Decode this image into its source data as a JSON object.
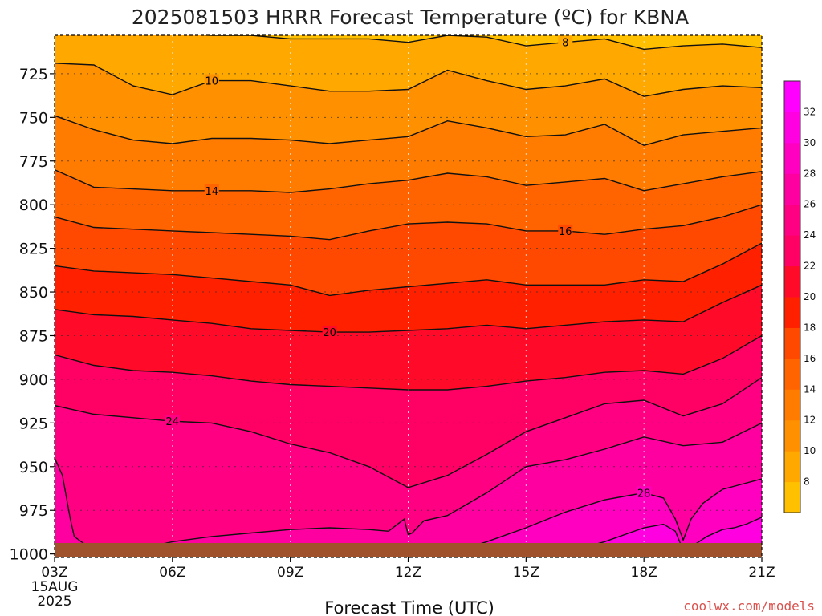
{
  "chart_data": {
    "type": "contour",
    "title": "2025081503 HRRR Forecast Temperature (ºC) for KBNA",
    "xlabel": "Forecast Time (UTC)",
    "ylabel": "",
    "credit": "coolwx.com/models",
    "x_ticks": [
      "03Z",
      "06Z",
      "09Z",
      "12Z",
      "15Z",
      "18Z",
      "21Z"
    ],
    "x_first_date": [
      "15AUG",
      "2025"
    ],
    "x_hours": [
      3,
      21
    ],
    "y_ticks": [
      725,
      750,
      775,
      800,
      825,
      850,
      875,
      900,
      925,
      950,
      975,
      1000
    ],
    "y_range": [
      703,
      1002
    ],
    "y_inverted": true,
    "grid": true,
    "colorbar": {
      "levels": [
        6,
        8,
        10,
        12,
        14,
        16,
        18,
        20,
        22,
        24,
        26,
        28,
        30,
        32,
        34
      ],
      "labels": [
        "8",
        "10",
        "12",
        "14",
        "16",
        "18",
        "20",
        "22",
        "24",
        "26",
        "28",
        "30",
        "32"
      ],
      "colors": [
        "#ffc000",
        "#ffa800",
        "#ff9000",
        "#ff7c00",
        "#ff6400",
        "#ff4800",
        "#ff2000",
        "#ff0a28",
        "#ff0064",
        "#ff0082",
        "#ff00a0",
        "#ff00c0",
        "#ff00e0",
        "#ff00ff"
      ]
    },
    "ground_color": "#a0522d",
    "isotherms": [
      {
        "temp": 8,
        "label": "8",
        "label_hour": 16.0,
        "hours": [
          3,
          4,
          5,
          6,
          7,
          8,
          9,
          10,
          11,
          12,
          13,
          14,
          15,
          16,
          17,
          18,
          19,
          20,
          21
        ],
        "pressures": [
          702,
          702,
          702,
          702,
          703,
          703,
          705,
          705,
          705,
          707,
          703,
          704,
          709,
          707,
          705,
          711,
          709,
          708,
          710
        ]
      },
      {
        "temp": 10,
        "label": "10",
        "label_hour": 7.0,
        "hours": [
          3,
          4,
          5,
          6,
          7,
          8,
          9,
          10,
          11,
          12,
          13,
          14,
          15,
          16,
          17,
          18,
          19,
          20,
          21
        ],
        "pressures": [
          719,
          720,
          732,
          737,
          729,
          729,
          732,
          735,
          735,
          734,
          723,
          729,
          734,
          732,
          728,
          738,
          734,
          732,
          733
        ]
      },
      {
        "temp": 12,
        "label": "",
        "label_hour": null,
        "hours": [
          3,
          4,
          5,
          6,
          7,
          8,
          9,
          10,
          11,
          12,
          13,
          14,
          15,
          16,
          17,
          18,
          19,
          20,
          21
        ],
        "pressures": [
          749,
          757,
          763,
          765,
          762,
          762,
          763,
          765,
          763,
          761,
          752,
          756,
          761,
          760,
          754,
          766,
          760,
          758,
          756
        ]
      },
      {
        "temp": 14,
        "label": "14",
        "label_hour": 7.0,
        "hours": [
          3,
          4,
          5,
          6,
          7,
          8,
          9,
          10,
          11,
          12,
          13,
          14,
          15,
          16,
          17,
          18,
          19,
          20,
          21
        ],
        "pressures": [
          780,
          790,
          791,
          792,
          792,
          792,
          793,
          791,
          788,
          786,
          782,
          784,
          789,
          787,
          785,
          792,
          788,
          784,
          781
        ]
      },
      {
        "temp": 16,
        "label": "16",
        "label_hour": 16.0,
        "hours": [
          3,
          4,
          5,
          6,
          7,
          8,
          9,
          10,
          11,
          12,
          13,
          14,
          15,
          16,
          17,
          18,
          19,
          20,
          21
        ],
        "pressures": [
          807,
          813,
          814,
          815,
          816,
          817,
          818,
          820,
          815,
          811,
          810,
          811,
          815,
          815,
          817,
          814,
          812,
          807,
          800
        ]
      },
      {
        "temp": 18,
        "label": "",
        "label_hour": null,
        "hours": [
          3,
          4,
          5,
          6,
          7,
          8,
          9,
          10,
          11,
          12,
          13,
          14,
          15,
          16,
          17,
          18,
          19,
          20,
          21
        ],
        "pressures": [
          835,
          838,
          839,
          840,
          842,
          844,
          846,
          852,
          849,
          847,
          845,
          843,
          846,
          846,
          846,
          843,
          844,
          834,
          822
        ]
      },
      {
        "temp": 20,
        "label": "20",
        "label_hour": 10.0,
        "hours": [
          3,
          4,
          5,
          6,
          7,
          8,
          9,
          10,
          11,
          12,
          13,
          14,
          15,
          16,
          17,
          18,
          19,
          20,
          21
        ],
        "pressures": [
          860,
          863,
          864,
          866,
          868,
          871,
          872,
          873,
          873,
          872,
          871,
          869,
          871,
          869,
          867,
          866,
          867,
          856,
          846
        ]
      },
      {
        "temp": 22,
        "label": "",
        "label_hour": null,
        "hours": [
          3,
          4,
          5,
          6,
          7,
          8,
          9,
          10,
          11,
          12,
          13,
          14,
          15,
          16,
          17,
          18,
          19,
          20,
          21
        ],
        "pressures": [
          886,
          892,
          895,
          896,
          898,
          901,
          903,
          904,
          905,
          906,
          906,
          904,
          901,
          899,
          896,
          895,
          897,
          888,
          875
        ]
      },
      {
        "temp": 24,
        "label": "24",
        "label_hour": 6.0,
        "hours": [
          3,
          4,
          5,
          6,
          7,
          8,
          9,
          10,
          11,
          12,
          13,
          14,
          15,
          16,
          17,
          18,
          19,
          20,
          21
        ],
        "pressures": [
          915,
          920,
          922,
          924,
          925,
          930,
          937,
          942,
          950,
          962,
          955,
          943,
          930,
          922,
          914,
          912,
          921,
          914,
          899
        ]
      },
      {
        "temp": 26,
        "label": "",
        "label_hour": null,
        "hours": [
          3,
          3.2,
          3.4,
          3.5,
          3.8,
          4.5,
          5.2,
          6,
          7,
          8,
          9,
          10,
          11,
          11.5,
          11.9,
          12.0,
          12.1,
          12.4,
          13,
          14,
          15,
          16,
          17,
          18,
          19,
          20,
          21
        ],
        "pressures": [
          945,
          955,
          980,
          990,
          995,
          997,
          997,
          993,
          990,
          988,
          986,
          985,
          986,
          987,
          980,
          989,
          988,
          981,
          978,
          965,
          950,
          946,
          940,
          933,
          938,
          936,
          925
        ]
      },
      {
        "temp": 28,
        "label": "28",
        "label_hour": 18.0,
        "hours": [
          12.5,
          13,
          14,
          15,
          16,
          17,
          18,
          18.5,
          18.8,
          19.0,
          19.2,
          19.5,
          20,
          21
        ],
        "pressures": [
          1002,
          1000,
          993,
          985,
          976,
          969,
          965,
          968,
          980,
          992,
          980,
          971,
          963,
          957
        ]
      },
      {
        "temp": 30,
        "label": "",
        "label_hour": null,
        "hours": [
          15.5,
          16,
          17,
          18,
          18.5,
          18.8,
          19.0,
          19.2,
          19.6,
          20.0,
          20.3,
          20.6,
          21
        ],
        "pressures": [
          1002,
          999,
          993,
          985,
          983,
          987,
          998,
          996,
          990,
          986,
          985,
          983,
          979
        ]
      },
      {
        "temp": 32,
        "label": "",
        "label_hour": null,
        "hours": [
          20.7,
          21
        ],
        "pressures": [
          997,
          994
        ]
      }
    ]
  }
}
